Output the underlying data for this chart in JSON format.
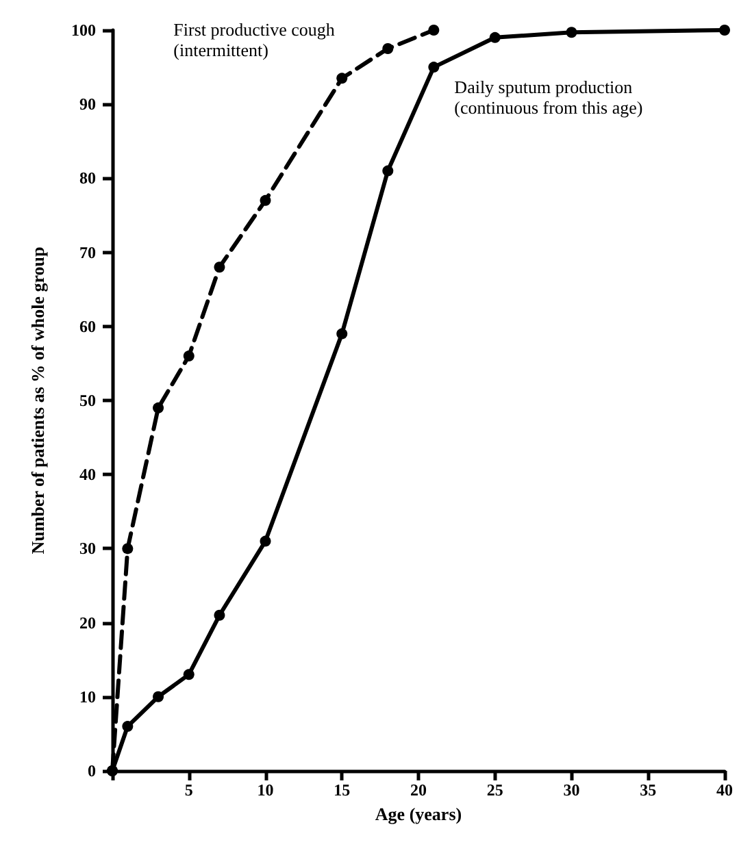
{
  "chart_data": {
    "type": "line",
    "xlabel": "Age (years)",
    "ylabel": "Number of patients as % of whole group",
    "xlim": [
      0,
      40
    ],
    "xticks": [
      {
        "value": 0,
        "label": null
      },
      5,
      10,
      15,
      20,
      25,
      30,
      35,
      40
    ],
    "ylim": [
      0,
      100
    ],
    "yticks": [
      0,
      10,
      20,
      30,
      40,
      50,
      60,
      70,
      80,
      90,
      100
    ],
    "grid": false,
    "legend": false,
    "marker": "circle",
    "series": [
      {
        "name": "First productive cough\n(intermittent)",
        "color": "#000000",
        "line_style": "dashed",
        "x": [
          0,
          1,
          3,
          5,
          7,
          10,
          15,
          18,
          21
        ],
        "values": [
          0,
          30,
          49,
          56,
          68,
          77,
          93.5,
          97.5,
          100
        ]
      },
      {
        "name": "Daily sputum production\n(continuous from this age)",
        "color": "#000000",
        "line_style": "solid",
        "x": [
          0,
          1,
          3,
          5,
          7,
          10,
          15,
          18,
          21,
          25,
          30,
          40
        ],
        "values": [
          0,
          6,
          10,
          13,
          21,
          31,
          59,
          81,
          95,
          99,
          99.7,
          100
        ]
      }
    ]
  }
}
